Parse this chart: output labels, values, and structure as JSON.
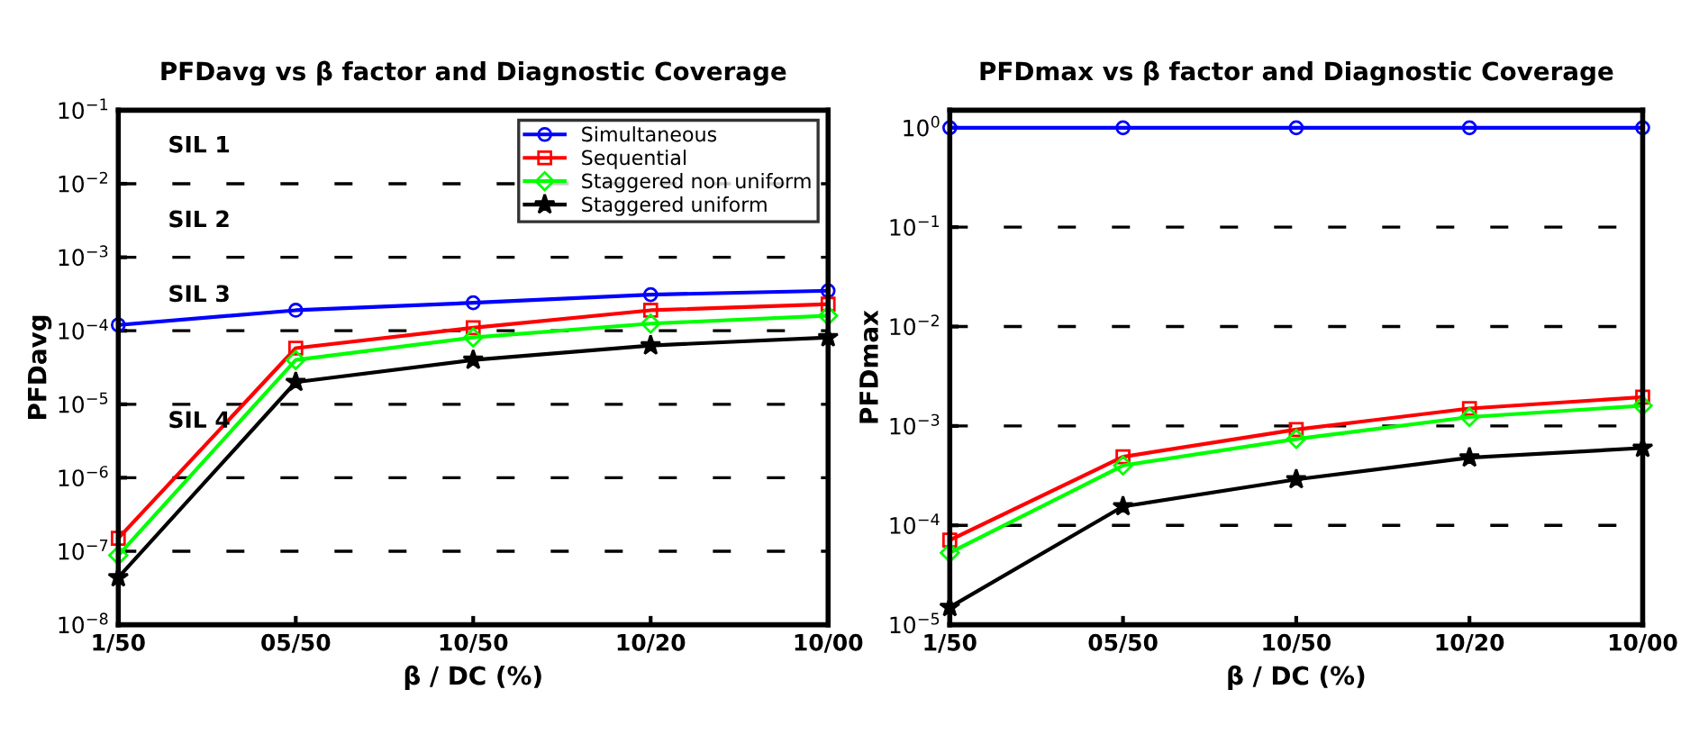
{
  "chart_data": [
    {
      "type": "line",
      "title": "PFDavg vs β factor and Diagnostic Coverage",
      "xlabel": "β / DC (%)",
      "ylabel": "PFDavg",
      "categories": [
        "1/50",
        "05/50",
        "10/50",
        "10/20",
        "10/00"
      ],
      "series": [
        {
          "name": "Simultaneous",
          "color": "#0000ff",
          "marker": "circle",
          "values": [
            0.00012,
            0.00019,
            0.00024,
            0.00031,
            0.00035
          ]
        },
        {
          "name": "Sequential",
          "color": "#ff0000",
          "marker": "square",
          "values": [
            1.5e-07,
            5.8e-05,
            0.00011,
            0.00019,
            0.00023
          ]
        },
        {
          "name": "Staggered non uniform",
          "color": "#00ff00",
          "marker": "diamond",
          "values": [
            8.8e-08,
            4e-05,
            8.1e-05,
            0.000125,
            0.00016
          ]
        },
        {
          "name": "Staggered uniform",
          "color": "#000000",
          "marker": "star",
          "values": [
            4.4e-08,
            2e-05,
            4e-05,
            6.3e-05,
            8.1e-05
          ]
        }
      ],
      "log": "y",
      "ylim": [
        1e-08,
        0.1
      ],
      "yticks": [
        {
          "value": 0.1,
          "label": "10$^{−1}$"
        },
        {
          "value": 0.01,
          "label": "10$^{−2}$"
        },
        {
          "value": 0.001,
          "label": "10$^{−3}$"
        },
        {
          "value": 0.0001,
          "label": "10$^{−4}$"
        },
        {
          "value": 1e-05,
          "label": "10$^{−5}$"
        },
        {
          "value": 1e-06,
          "label": "10$^{−6}$"
        },
        {
          "value": 1e-07,
          "label": "10$^{−7}$"
        },
        {
          "value": 1e-08,
          "label": "10$^{−8}$"
        }
      ],
      "grid": "y",
      "legend": "top right",
      "annotations": [
        "SIL 1",
        "SIL 2",
        "SIL 3",
        "SIL 4"
      ]
    },
    {
      "type": "line",
      "title": "PFDmax vs β factor and Diagnostic Coverage",
      "xlabel": "β / DC (%)",
      "ylabel": "PFDmax",
      "categories": [
        "1/50",
        "05/50",
        "10/50",
        "10/20",
        "10/00"
      ],
      "series": [
        {
          "color": "#0000ff",
          "marker": "circle",
          "values": [
            1,
            1,
            1,
            1,
            1
          ]
        },
        {
          "color": "#ff0000",
          "marker": "square",
          "values": [
            7.1e-05,
            0.00049,
            0.00092,
            0.0015,
            0.00195
          ]
        },
        {
          "color": "#00ff00",
          "marker": "diamond",
          "values": [
            5.3e-05,
            0.0004,
            0.00074,
            0.00123,
            0.0016
          ]
        },
        {
          "color": "#000000",
          "marker": "star",
          "values": [
            1.5e-05,
            0.000155,
            0.00029,
            0.00048,
            0.0006
          ]
        }
      ],
      "log": "y",
      "ylim": [
        1e-05,
        1.5
      ],
      "yticks": [
        {
          "value": 1,
          "label": "10$^{0}$"
        },
        {
          "value": 0.1,
          "label": "10$^{−1}$"
        },
        {
          "value": 0.01,
          "label": "10$^{−2}$"
        },
        {
          "value": 0.001,
          "label": "10$^{−3}$"
        },
        {
          "value": 0.0001,
          "label": "10$^{−4}$"
        },
        {
          "value": 1e-05,
          "label": "10$^{−5}$"
        }
      ],
      "grid": "y"
    }
  ]
}
